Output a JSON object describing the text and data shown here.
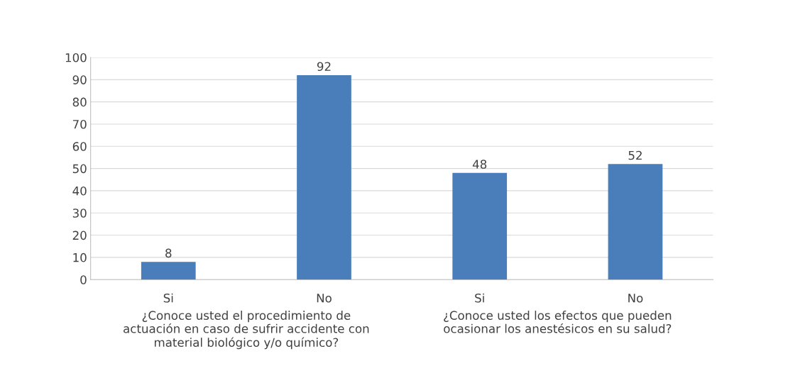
{
  "chart_data": {
    "type": "bar",
    "categories": [
      "Si",
      "No",
      "Si",
      "No"
    ],
    "values": [
      8,
      92,
      48,
      52
    ],
    "color": "#4a7ebb",
    "ylim": [
      0,
      100
    ],
    "yticks": [
      0,
      10,
      20,
      30,
      40,
      50,
      60,
      70,
      80,
      90,
      100
    ],
    "grid": "y",
    "legend": false,
    "data_labels": true,
    "annotations": [
      "¿Conoce usted el procedimiento de actuación en caso de sufrir accidente con material biológico y/o químico?",
      "¿Conoce usted los efectos que pueden ocasionar los anestésicos en su salud?"
    ]
  }
}
